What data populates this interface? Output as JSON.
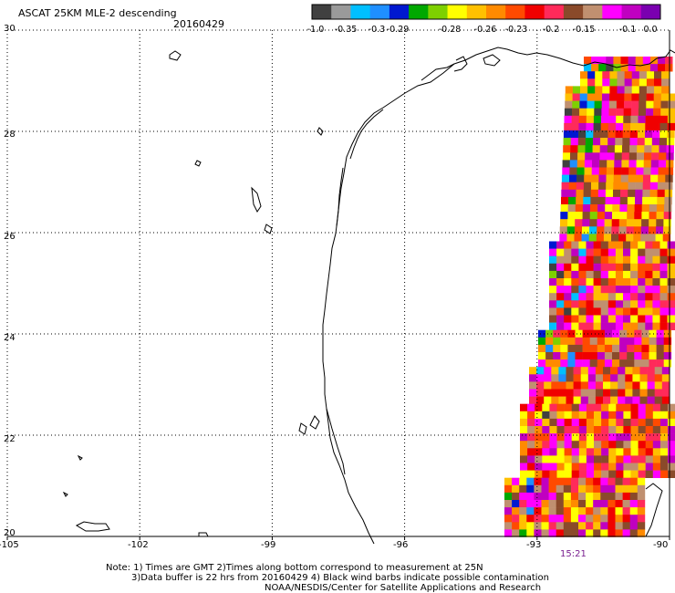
{
  "header": {
    "title": "ASCAT 25KM MLE-2 descending",
    "date": "20160429"
  },
  "colorbar": {
    "colors": [
      "#404040",
      "#9a9a9a",
      "#00bfff",
      "#1f8fff",
      "#0018d0",
      "#00a800",
      "#7ed000",
      "#ffff00",
      "#ffc000",
      "#ff8a00",
      "#ff4a00",
      "#f00000",
      "#ff2a5a",
      "#8a4a2a",
      "#c09070",
      "#ff00ff",
      "#c000c0",
      "#7a00b0"
    ],
    "labels": [
      "-1.0",
      "-0.35",
      "-0.3",
      "-0.29",
      "-0.28",
      "-0.26",
      "-0.23",
      "-0.2",
      "-0.15",
      "-0.1",
      "0.0"
    ]
  },
  "map": {
    "x_ticks": [
      "-105",
      "-102",
      "-99",
      "-96",
      "-93",
      "-90"
    ],
    "y_ticks": [
      "30",
      "28",
      "26",
      "24",
      "22",
      "20"
    ],
    "lon_range": [
      -105,
      -90
    ],
    "lat_range": [
      20,
      30
    ],
    "gridlines": "dotted",
    "pass_time": "15:21",
    "pass_time_color": "#7a2090"
  },
  "notes": {
    "line1": "Note: 1) Times are GMT 2)Times along bottom correspond to measurement at 25N",
    "line2": "3)Data buffer is 22 hrs from 20160429 4) Black wind barbs indicate possible contamination",
    "line3": "NOAA/NESDIS/Center for Satellite Applications and Research"
  }
}
